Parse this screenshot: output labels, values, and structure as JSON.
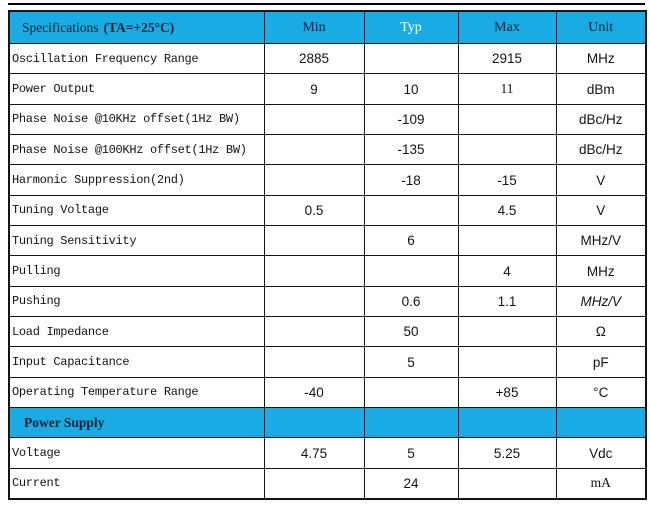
{
  "colors": {
    "page_bg": "#ffffff",
    "header_bg": "#1babe4",
    "header_text": "#0d2433",
    "typ_header_text": "#ffffff",
    "border": "#141414",
    "text": "#141414"
  },
  "table": {
    "header": {
      "spec_name": "Specifications",
      "spec_condition": "(TA=+25°C)",
      "columns": [
        "Min",
        "Typ",
        "Max",
        "Unit"
      ]
    },
    "rows": [
      {
        "label": "Oscillation Frequency Range",
        "min": "2885",
        "typ": "",
        "max": "2915",
        "unit": "MHz"
      },
      {
        "label": "Power Output",
        "min": "9",
        "typ": "10",
        "max": "11",
        "unit": "dBm",
        "styles": {
          "max": "serif"
        }
      },
      {
        "label": "Phase Noise @10KHz offset(1Hz BW)",
        "min": "",
        "typ": "-109",
        "max": "",
        "unit": "dBc/Hz"
      },
      {
        "label": "Phase Noise @100KHz offset(1Hz BW)",
        "min": "",
        "typ": "-135",
        "max": "",
        "unit": "dBc/Hz"
      },
      {
        "label": "Harmonic Suppression(2nd)",
        "min": "",
        "typ": "-18",
        "max": "-15",
        "unit": "V"
      },
      {
        "label": "Tuning Voltage",
        "min": "0.5",
        "typ": "",
        "max": "4.5",
        "unit": "V"
      },
      {
        "label": "Tuning Sensitivity",
        "min": "",
        "typ": "6",
        "max": "",
        "unit": "MHz/V"
      },
      {
        "label": "Pulling",
        "min": "",
        "typ": "",
        "max": "4",
        "unit": "MHz"
      },
      {
        "label": "Pushing",
        "min": "",
        "typ": "0.6",
        "max": "1.1",
        "unit": "MHz/V",
        "styles": {
          "unit": "italic"
        }
      },
      {
        "label": "Load Impedance",
        "min": "",
        "typ": "50",
        "max": "",
        "unit": "Ω"
      },
      {
        "label": "Input Capacitance",
        "min": "",
        "typ": "5",
        "max": "",
        "unit": "pF"
      },
      {
        "label": "Operating Temperature Range",
        "min": "-40",
        "typ": "",
        "max": "+85",
        "unit": "°C"
      },
      {
        "section": true,
        "label": "Power Supply"
      },
      {
        "label": "Voltage",
        "min": "4.75",
        "typ": "5",
        "max": "5.25",
        "unit": "Vdc"
      },
      {
        "label": "Current",
        "min": "",
        "typ": "24",
        "max": "",
        "unit": "mA",
        "styles": {
          "unit": "serif"
        }
      }
    ]
  }
}
